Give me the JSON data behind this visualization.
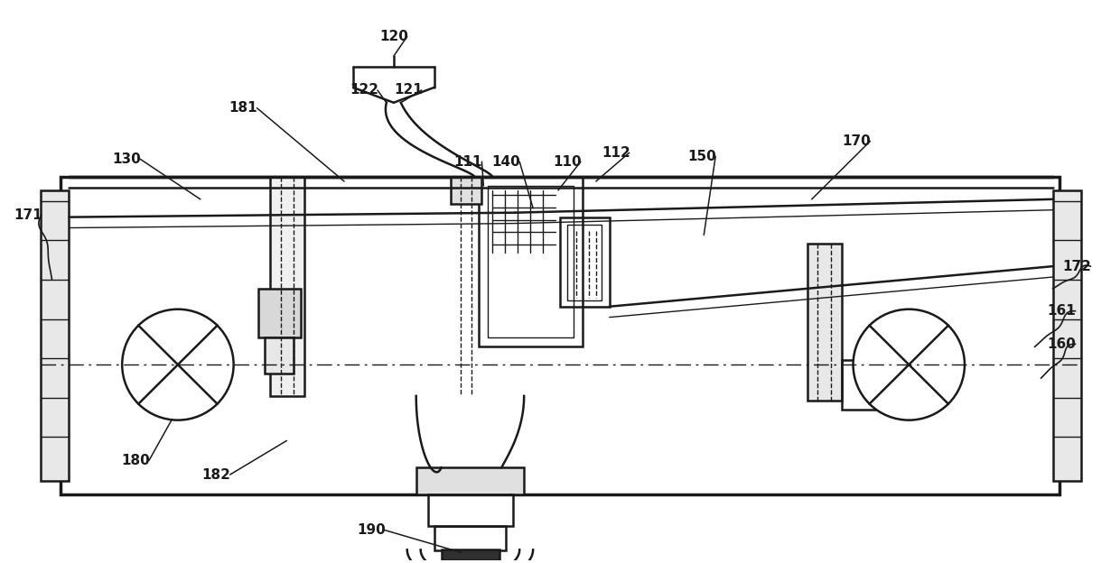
{
  "bg_color": "#ffffff",
  "line_color": "#1a1a1a",
  "label_color": "#1a1a1a",
  "figsize": [
    12.4,
    6.24
  ],
  "dpi": 100
}
